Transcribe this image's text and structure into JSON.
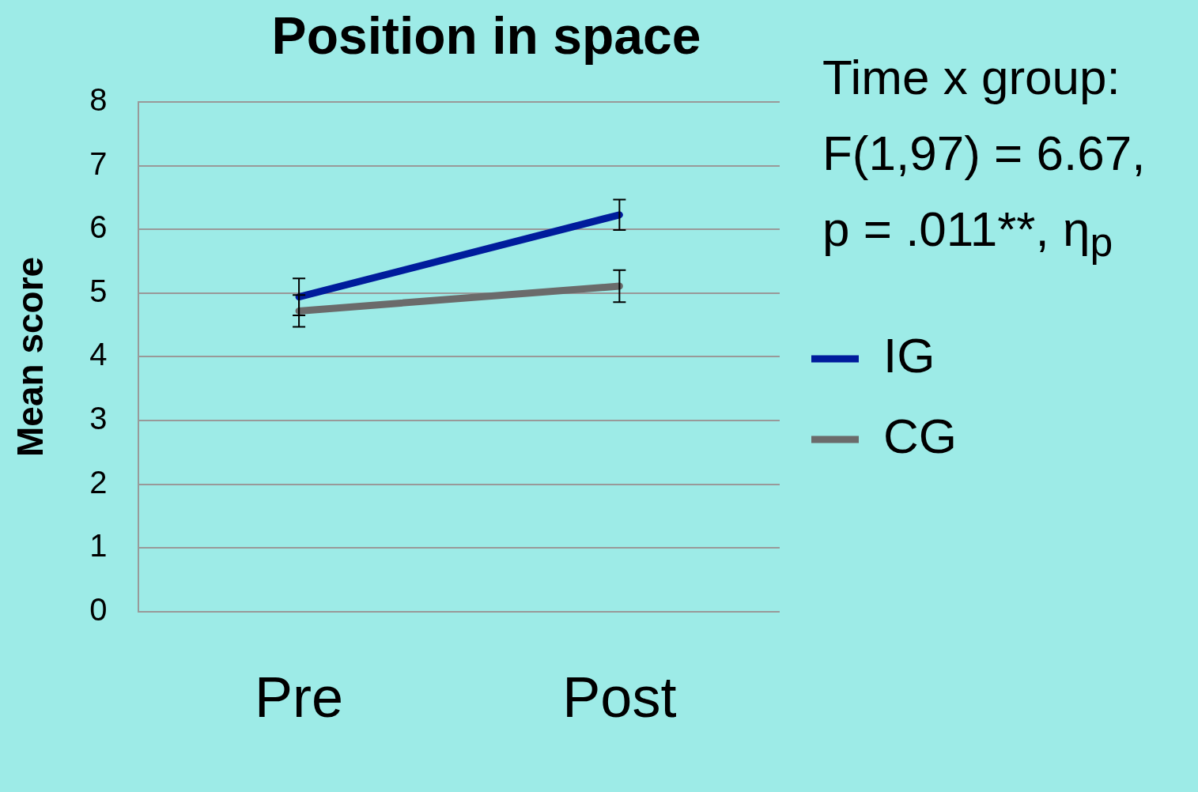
{
  "chart_data": {
    "type": "line",
    "title": "Position in space",
    "ylabel": "Mean score",
    "categories": [
      "Pre",
      "Post"
    ],
    "series": [
      {
        "name": "IG",
        "color": "#001c9c",
        "values": [
          4.94,
          6.23
        ],
        "errors": [
          0.29,
          0.24
        ]
      },
      {
        "name": "CG",
        "color": "#6b6b6b",
        "values": [
          4.72,
          5.11
        ],
        "errors": [
          0.25,
          0.25
        ]
      }
    ],
    "ylim": [
      0,
      8
    ],
    "yticks": [
      0,
      1,
      2,
      3,
      4,
      5,
      6,
      7,
      8
    ],
    "grid": "y",
    "legend": "right",
    "marker": "none",
    "annotations": [
      "Time x group:",
      "F(1,97) = 6.67,",
      "p = .011**, η$_{p}$"
    ]
  }
}
